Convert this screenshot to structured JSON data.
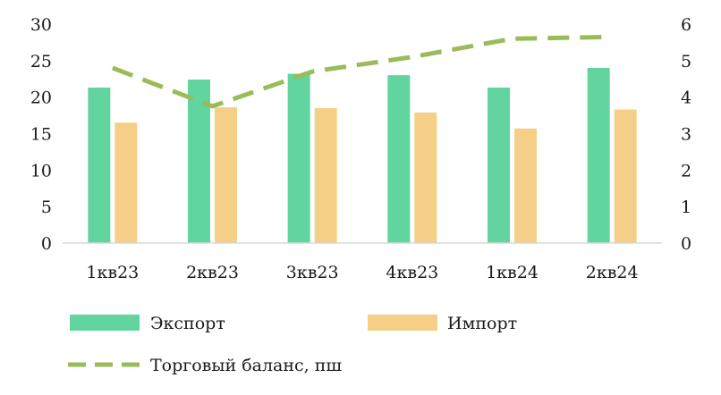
{
  "chart_data": {
    "type": "bar",
    "categories": [
      "1кв23",
      "2кв23",
      "3кв23",
      "4кв23",
      "1кв24",
      "2кв24"
    ],
    "series": [
      {
        "name": "Экспорт",
        "type": "bar",
        "axis": "left",
        "color": "#61d4a0",
        "values": [
          21.3,
          22.4,
          23.2,
          23.0,
          21.3,
          24.0
        ]
      },
      {
        "name": "Импорт",
        "type": "bar",
        "axis": "left",
        "color": "#f5cf87",
        "values": [
          16.5,
          18.6,
          18.5,
          17.9,
          15.7,
          18.3
        ]
      },
      {
        "name": "Торговый баланс, пш",
        "type": "line",
        "style": "dashed",
        "axis": "right",
        "color": "#9bbb59",
        "values": [
          4.8,
          3.75,
          4.7,
          5.1,
          5.6,
          5.65
        ]
      }
    ],
    "y_left": {
      "min": 0,
      "max": 30,
      "ticks": [
        0,
        5,
        10,
        15,
        20,
        25,
        30
      ]
    },
    "y_right": {
      "min": 0,
      "max": 6,
      "ticks": [
        0,
        1,
        2,
        3,
        4,
        5,
        6
      ]
    },
    "grid": false,
    "legend": "bottom"
  }
}
